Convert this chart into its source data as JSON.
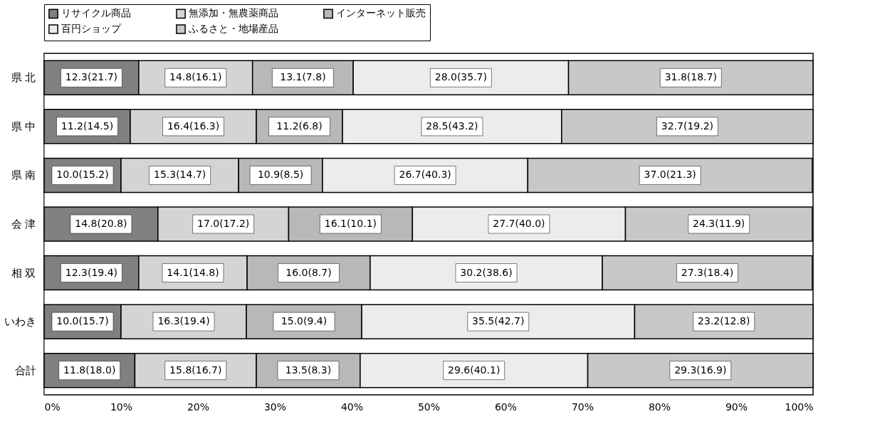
{
  "chart_data": {
    "type": "bar",
    "orientation": "horizontal",
    "stacked": true,
    "categories": [
      "県 北",
      "県 中",
      "県 南",
      "会 津",
      "相 双",
      "いわき",
      "合計"
    ],
    "series": [
      {
        "name": "リサイクル商品",
        "color": "#808080",
        "values": [
          12.3,
          11.2,
          10.0,
          14.8,
          12.3,
          10.0,
          11.8
        ],
        "value_labels": [
          "12.3(21.7)",
          "11.2(14.5)",
          "10.0(15.2)",
          "14.8(20.8)",
          "12.3(19.4)",
          "10.0(15.7)",
          "11.8(18.0)"
        ]
      },
      {
        "name": "無添加・無農薬商品",
        "color": "#d4d4d4",
        "values": [
          14.8,
          16.4,
          15.3,
          17.0,
          14.1,
          16.3,
          15.8
        ],
        "value_labels": [
          "14.8(16.1)",
          "16.4(16.3)",
          "15.3(14.7)",
          "17.0(17.2)",
          "14.1(14.8)",
          "16.3(19.4)",
          "15.8(16.7)"
        ]
      },
      {
        "name": "インターネット販売",
        "color": "#b8b8b8",
        "values": [
          13.1,
          11.2,
          10.9,
          16.1,
          16.0,
          15.0,
          13.5
        ],
        "value_labels": [
          "13.1(7.8)",
          "11.2(6.8)",
          "10.9(8.5)",
          "16.1(10.1)",
          "16.0(8.7)",
          "15.0(9.4)",
          "13.5(8.3)"
        ]
      },
      {
        "name": "百円ショップ",
        "color": "#ececec",
        "values": [
          28.0,
          28.5,
          26.7,
          27.7,
          30.2,
          35.5,
          29.6
        ],
        "value_labels": [
          "28.0(35.7)",
          "28.5(43.2)",
          "26.7(40.3)",
          "27.7(40.0)",
          "30.2(38.6)",
          "35.5(42.7)",
          "29.6(40.1)"
        ]
      },
      {
        "name": "ふるさと・地場産品",
        "color": "#c8c8c8",
        "values": [
          31.8,
          32.7,
          37.0,
          24.3,
          27.3,
          23.2,
          29.3
        ],
        "value_labels": [
          "31.8(18.7)",
          "32.7(19.2)",
          "37.0(21.3)",
          "24.3(11.9)",
          "27.3(18.4)",
          "23.2(12.8)",
          "29.3(16.9)"
        ]
      }
    ],
    "xlim": [
      0,
      100
    ],
    "xticks": [
      {
        "value": 0,
        "label": "0%"
      },
      {
        "value": 10,
        "label": "10%"
      },
      {
        "value": 20,
        "label": "20%"
      },
      {
        "value": 30,
        "label": "30%"
      },
      {
        "value": 40,
        "label": "40%"
      },
      {
        "value": 50,
        "label": "50%"
      },
      {
        "value": 60,
        "label": "60%"
      },
      {
        "value": 70,
        "label": "70%"
      },
      {
        "value": 80,
        "label": "80%"
      },
      {
        "value": 90,
        "label": "90%"
      },
      {
        "value": 100,
        "label": "100%"
      }
    ],
    "legend": "top",
    "grid": false
  }
}
